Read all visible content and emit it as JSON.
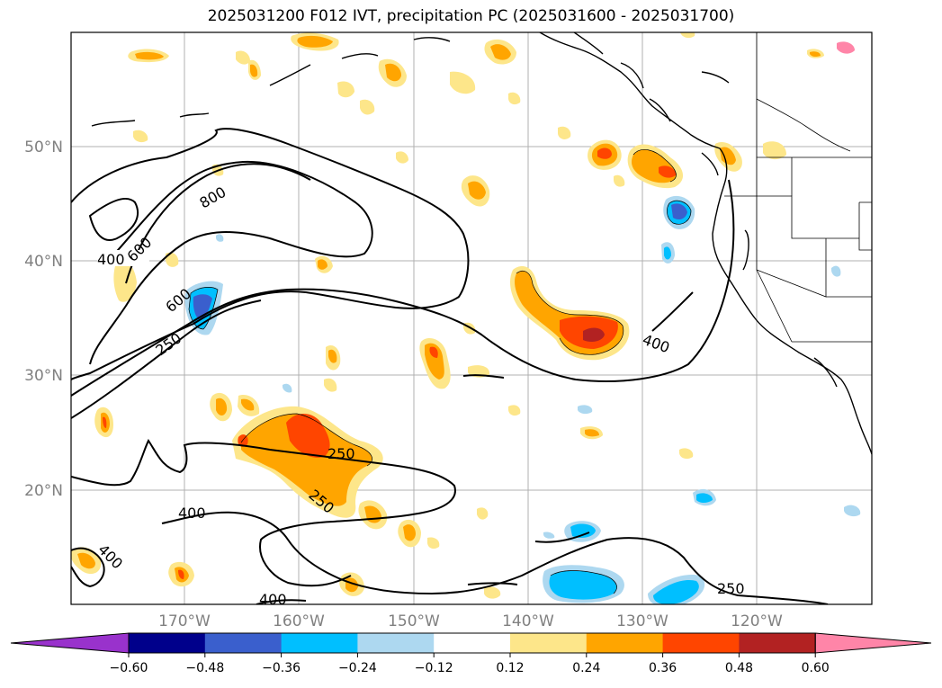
{
  "title": "2025031200 F012 IVT, precipitation PC (2025031600 - 2025031700)",
  "lat_labels": [
    "50°N",
    "40°N",
    "30°N",
    "20°N"
  ],
  "lon_labels": [
    "170°W",
    "160°W",
    "150°W",
    "140°W",
    "130°W",
    "120°W"
  ],
  "contour_labels": [
    "400",
    "600",
    "800",
    "400",
    "600",
    "250",
    "400",
    "250",
    "250",
    "400",
    "400",
    "400",
    "250"
  ],
  "colorbar": {
    "colors": [
      "#9932cc",
      "#00008b",
      "#3a5fcd",
      "#00bfff",
      "#add8f0",
      "#ffffff",
      "#fde68a",
      "#ffa500",
      "#ff4500",
      "#b22222",
      "#ff85a8"
    ],
    "tick_labels": [
      "−0.60",
      "−0.48",
      "−0.36",
      "−0.24",
      "−0.12",
      "0.12",
      "0.24",
      "0.36",
      "0.48",
      "0.60"
    ]
  }
}
